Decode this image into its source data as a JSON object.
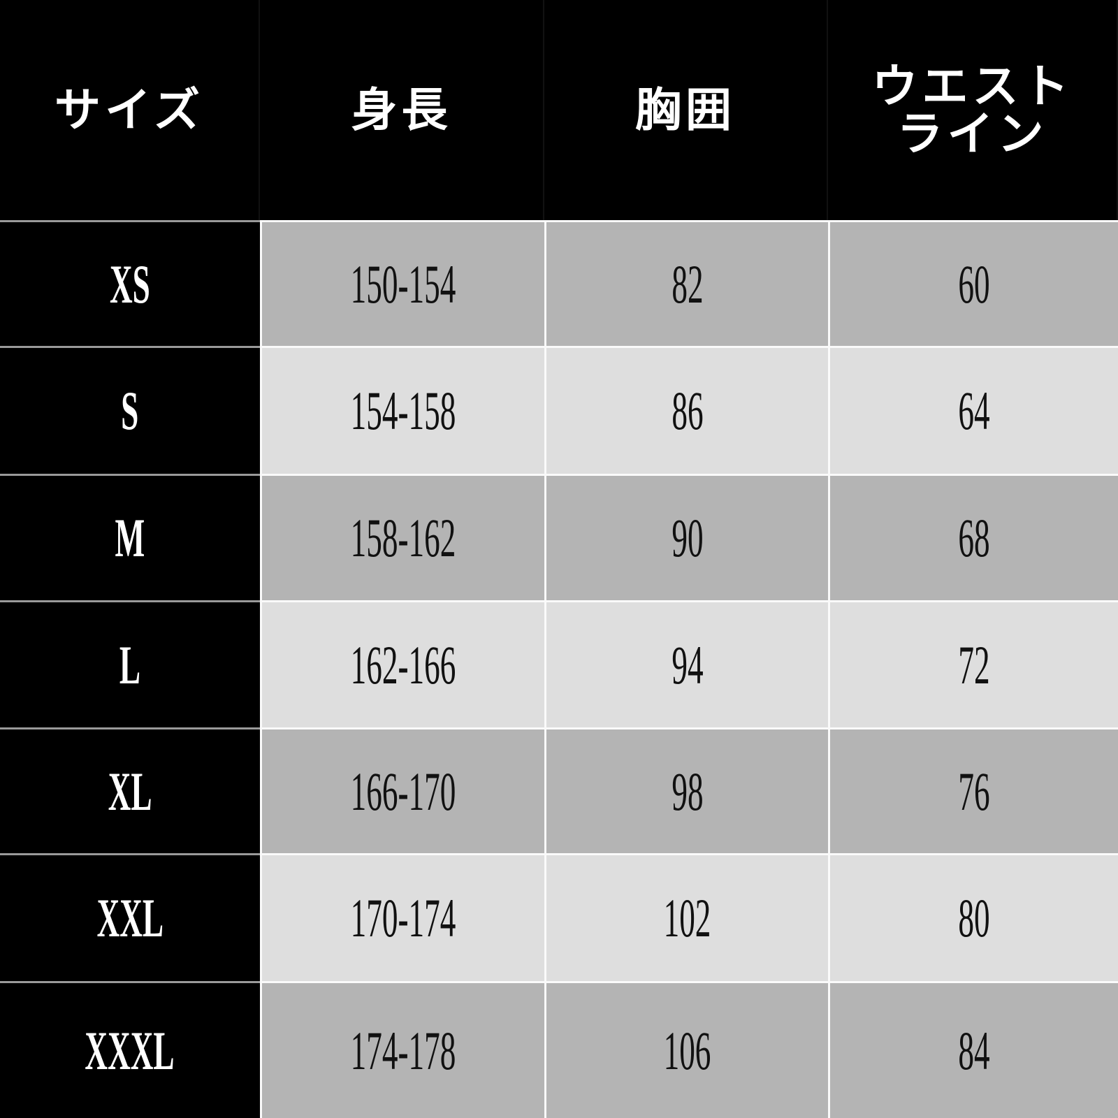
{
  "headers": [
    "サイズ",
    "身長",
    "胸囲",
    "ウエスト\nライン"
  ],
  "rows": [
    {
      "size": "XS",
      "height": "150-154",
      "chest": "82",
      "waist": "60"
    },
    {
      "size": "S",
      "height": "154-158",
      "chest": "86",
      "waist": "64"
    },
    {
      "size": "M",
      "height": "158-162",
      "chest": "90",
      "waist": "68"
    },
    {
      "size": "L",
      "height": "162-166",
      "chest": "94",
      "waist": "72"
    },
    {
      "size": "XL",
      "height": "166-170",
      "chest": "98",
      "waist": "76"
    },
    {
      "size": "XXL",
      "height": "170-174",
      "chest": "102",
      "waist": "80"
    },
    {
      "size": "XXXL",
      "height": "174-178",
      "chest": "106",
      "waist": "84"
    }
  ],
  "colors": {
    "header_bg": "#000000",
    "row_dark": "#b4b4b4",
    "row_light": "#dedede"
  }
}
